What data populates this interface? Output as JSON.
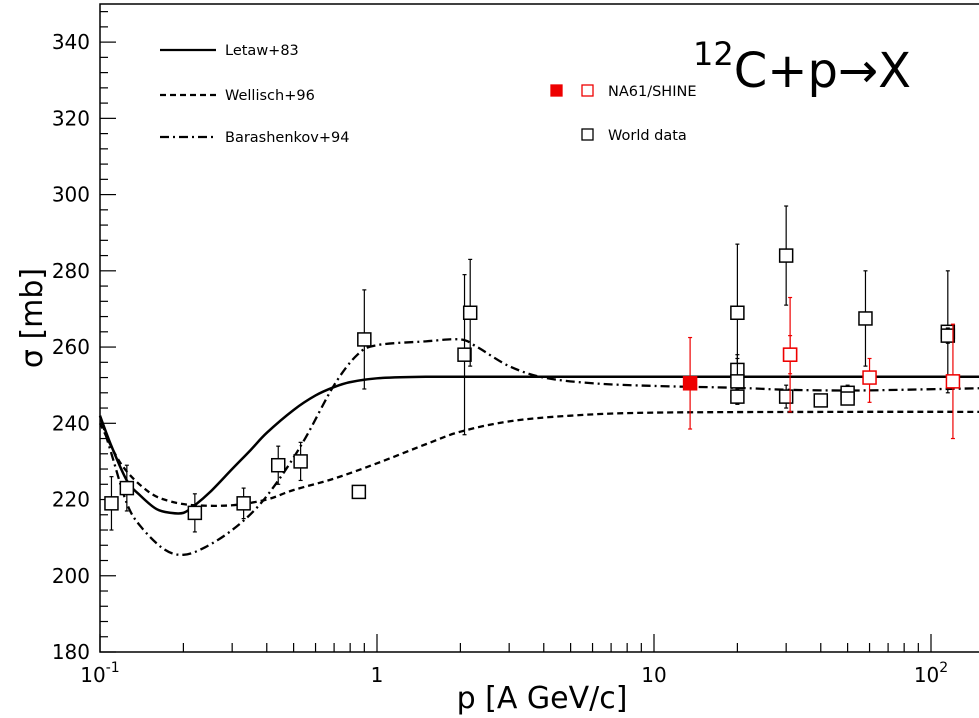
{
  "chart_data": {
    "type": "scatter",
    "title": "{12}C+p→X",
    "title_parts": {
      "sup": "12",
      "main": "C+p",
      "arrow": "→",
      "end": "X"
    },
    "xlabel": "p [A GeV/c]",
    "ylabel": "σ [mb]",
    "x_scale": "log",
    "xlim": [
      0.1,
      150
    ],
    "ylim": [
      180,
      350
    ],
    "grid": false,
    "legend_placement": "top",
    "y_ticks": [
      180,
      200,
      220,
      240,
      260,
      280,
      300,
      320,
      340
    ],
    "y_tick_labels": [
      "180",
      "200",
      "220",
      "240",
      "260",
      "280",
      "300",
      "320",
      "340"
    ],
    "x_ticks": [
      {
        "value": 0.1,
        "base": "10",
        "exp": "-1"
      },
      {
        "value": 1,
        "base": "1",
        "exp": ""
      },
      {
        "value": 10,
        "base": "10",
        "exp": ""
      },
      {
        "value": 100,
        "base": "10",
        "exp": "2"
      }
    ],
    "curves": [
      {
        "name": "Letaw+83",
        "style": "solid",
        "points": [
          [
            0.1,
            242
          ],
          [
            0.11,
            234
          ],
          [
            0.125,
            225
          ],
          [
            0.14,
            221
          ],
          [
            0.16,
            217.5
          ],
          [
            0.18,
            216.5
          ],
          [
            0.2,
            216.5
          ],
          [
            0.22,
            218.5
          ],
          [
            0.25,
            222
          ],
          [
            0.3,
            228
          ],
          [
            0.35,
            233
          ],
          [
            0.4,
            237.5
          ],
          [
            0.5,
            243.5
          ],
          [
            0.6,
            247.3
          ],
          [
            0.7,
            249.5
          ],
          [
            0.8,
            250.8
          ],
          [
            1,
            251.8
          ],
          [
            1.5,
            252.2
          ],
          [
            3,
            252.2
          ],
          [
            10,
            252.2
          ],
          [
            50,
            252.2
          ],
          [
            150,
            252.2
          ]
        ]
      },
      {
        "name": "Wellisch+96",
        "style": "dashed",
        "points": [
          [
            0.1,
            240
          ],
          [
            0.12,
            229
          ],
          [
            0.15,
            222
          ],
          [
            0.18,
            219.5
          ],
          [
            0.22,
            218.5
          ],
          [
            0.3,
            218.5
          ],
          [
            0.4,
            220
          ],
          [
            0.5,
            222.5
          ],
          [
            0.7,
            225.5
          ],
          [
            1,
            229.5
          ],
          [
            1.5,
            234.5
          ],
          [
            2,
            237.8
          ],
          [
            3,
            240.5
          ],
          [
            5,
            242
          ],
          [
            10,
            242.8
          ],
          [
            50,
            243
          ],
          [
            150,
            243
          ]
        ]
      },
      {
        "name": "Barashenkov+94",
        "style": "dashdot",
        "points": [
          [
            0.1,
            242
          ],
          [
            0.11,
            232
          ],
          [
            0.125,
            219
          ],
          [
            0.14,
            213
          ],
          [
            0.17,
            207
          ],
          [
            0.2,
            205.5
          ],
          [
            0.24,
            207.5
          ],
          [
            0.3,
            212
          ],
          [
            0.37,
            218
          ],
          [
            0.45,
            226
          ],
          [
            0.55,
            236
          ],
          [
            0.7,
            250
          ],
          [
            0.85,
            258
          ],
          [
            1,
            260.5
          ],
          [
            1.5,
            261.5
          ],
          [
            2,
            262
          ],
          [
            2.3,
            260
          ],
          [
            3,
            255
          ],
          [
            4,
            252
          ],
          [
            6,
            250.5
          ],
          [
            10,
            249.8
          ],
          [
            20,
            249.3
          ],
          [
            30,
            248.8
          ],
          [
            50,
            248.6
          ],
          [
            80,
            248.8
          ],
          [
            150,
            249.2
          ]
        ]
      }
    ],
    "series": [
      {
        "name": "NA61/SHINE",
        "marker": "square",
        "color": "#ee0000",
        "points": [
          {
            "x": 13.5,
            "y": 250.5,
            "yerr": [
              12,
              12
            ],
            "filled": true
          },
          {
            "x": 31,
            "y": 258,
            "yerr": [
              15,
              15
            ],
            "filled": false
          },
          {
            "x": 31,
            "y": 258,
            "yerr": [
              5,
              5
            ],
            "filled": false
          },
          {
            "x": 60,
            "y": 252,
            "yerr": [
              6.5,
              5
            ],
            "filled": false
          },
          {
            "x": 120,
            "y": 251,
            "yerr": [
              15,
              15
            ],
            "filled": false
          }
        ]
      },
      {
        "name": "World data",
        "marker": "square",
        "color": "#000000",
        "points": [
          {
            "x": 0.11,
            "y": 219,
            "yerr": [
              7,
              7
            ]
          },
          {
            "x": 0.125,
            "y": 223,
            "yerr": [
              6,
              6
            ]
          },
          {
            "x": 0.22,
            "y": 216.5,
            "yerr": [
              5,
              5
            ]
          },
          {
            "x": 0.33,
            "y": 219,
            "yerr": [
              4,
              4
            ]
          },
          {
            "x": 0.44,
            "y": 229,
            "yerr": [
              5,
              5
            ]
          },
          {
            "x": 0.53,
            "y": 230,
            "yerr": [
              5,
              5
            ]
          },
          {
            "x": 0.86,
            "y": 222,
            "yerr": [
              0,
              0
            ]
          },
          {
            "x": 0.9,
            "y": 262,
            "yerr": [
              13,
              13
            ]
          },
          {
            "x": 2.07,
            "y": 258,
            "yerr": [
              21,
              21
            ]
          },
          {
            "x": 2.17,
            "y": 269,
            "yerr": [
              14,
              14
            ]
          },
          {
            "x": 20,
            "y": 269,
            "yerr": [
              18,
              18
            ]
          },
          {
            "x": 20,
            "y": 254,
            "yerr": [
              4,
              4
            ]
          },
          {
            "x": 20,
            "y": 251,
            "yerr": [
              6,
              6
            ]
          },
          {
            "x": 20,
            "y": 247,
            "yerr": [
              2,
              2
            ]
          },
          {
            "x": 30,
            "y": 284,
            "yerr": [
              13,
              13
            ]
          },
          {
            "x": 30,
            "y": 247,
            "yerr": [
              3,
              3
            ]
          },
          {
            "x": 40,
            "y": 246,
            "yerr": [
              0,
              0
            ]
          },
          {
            "x": 50,
            "y": 248,
            "yerr": [
              2,
              2
            ]
          },
          {
            "x": 50,
            "y": 246.5,
            "yerr": [
              1.5,
              1.5
            ]
          },
          {
            "x": 58,
            "y": 267.5,
            "yerr": [
              12.5,
              12.5
            ]
          },
          {
            "x": 115,
            "y": 264,
            "yerr": [
              16,
              16
            ]
          },
          {
            "x": 115,
            "y": 263,
            "yerr": [
              2,
              2
            ]
          }
        ]
      }
    ],
    "legend": {
      "curves": [
        "Letaw+83",
        "Wellisch+96",
        "Barashenkov+94"
      ],
      "markers": [
        {
          "label": "NA61/SHINE",
          "symbols": [
            "filled-red-square",
            "open-red-square"
          ]
        },
        {
          "label": "World data",
          "symbols": [
            "open-black-square"
          ]
        }
      ]
    }
  }
}
